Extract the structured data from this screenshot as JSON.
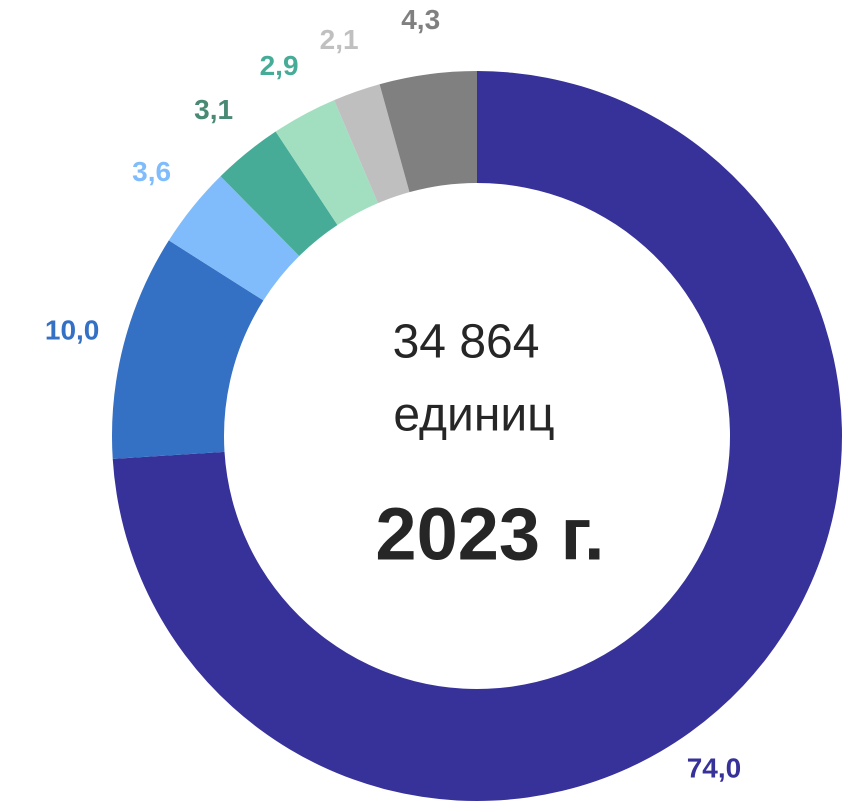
{
  "chart_data": {
    "type": "pie",
    "title": "2023 г.",
    "annotations": [
      "34 864",
      "единиц"
    ],
    "categories": [
      null,
      null,
      null,
      null,
      null,
      null,
      null
    ],
    "values": [
      74.0,
      10.0,
      3.6,
      3.1,
      2.9,
      2.1,
      4.3
    ],
    "value_labels": [
      "74,0",
      "10,0",
      "3,6",
      "3,1",
      "2,9",
      "2,1",
      "4,3"
    ],
    "colors": [
      "#36329a",
      "#3470c4",
      "#80bcfc",
      "#46ac98",
      "#a2dfc0",
      "#bfbfbf",
      "#808080"
    ],
    "label_colors": [
      "#36329a",
      "#3470c4",
      "#80bcfc",
      "#4a8a75",
      "#46ac98",
      "#c0c0c0",
      "#808080"
    ],
    "donut": true
  }
}
